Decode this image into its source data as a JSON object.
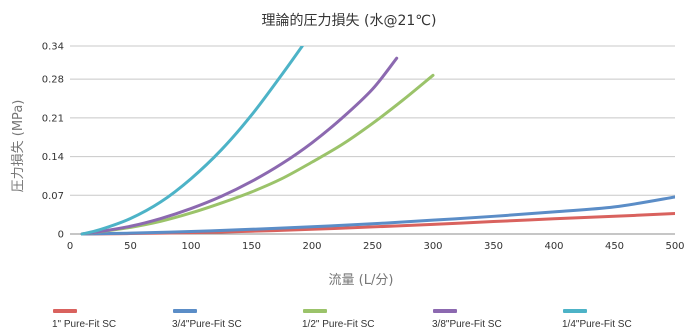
{
  "chart_data": {
    "type": "line",
    "title": "理論的圧力損失 (水@21℃)",
    "xlabel": "流量 (L/分)",
    "ylabel": "圧力損失 (MPa)",
    "xlim": [
      0,
      500
    ],
    "ylim": [
      0,
      0.34
    ],
    "x_ticks": [
      "0",
      "50",
      "100",
      "150",
      "200",
      "250",
      "300",
      "350",
      "400",
      "450",
      "500"
    ],
    "y_ticks": [
      "0",
      "0.07",
      "0.14",
      "0.21",
      "0.28",
      "0.34"
    ],
    "grid": "horizontal",
    "legend_position": "bottom",
    "series": [
      {
        "name": "1\" Pure-Fit SC",
        "color": "#d9625e",
        "x": [
          10,
          50,
          100,
          150,
          200,
          250,
          300,
          350,
          400,
          450,
          500
        ],
        "y": [
          0.0,
          0.0008,
          0.0025,
          0.005,
          0.0085,
          0.0128,
          0.0175,
          0.0225,
          0.0275,
          0.032,
          0.037
        ]
      },
      {
        "name": "3/4\"Pure-Fit SC",
        "color": "#5b8dc7",
        "x": [
          10,
          50,
          100,
          150,
          200,
          250,
          300,
          350,
          400,
          450,
          500
        ],
        "y": [
          0.0,
          0.0015,
          0.0045,
          0.0085,
          0.013,
          0.0185,
          0.025,
          0.032,
          0.04,
          0.049,
          0.067
        ]
      },
      {
        "name": "1/2\" Pure-Fit SC",
        "color": "#9bc36a",
        "x": [
          10,
          25,
          50,
          75,
          100,
          125,
          150,
          175,
          200,
          225,
          250,
          275,
          300
        ],
        "y": [
          0.0,
          0.004,
          0.012,
          0.023,
          0.038,
          0.056,
          0.076,
          0.1,
          0.13,
          0.162,
          0.2,
          0.242,
          0.287
        ]
      },
      {
        "name": "3/8\"Pure-Fit SC",
        "color": "#8c69b0",
        "x": [
          10,
          25,
          50,
          75,
          100,
          125,
          150,
          175,
          200,
          225,
          250,
          270
        ],
        "y": [
          0.0,
          0.0045,
          0.014,
          0.028,
          0.046,
          0.068,
          0.095,
          0.127,
          0.165,
          0.21,
          0.262,
          0.318
        ]
      },
      {
        "name": "1/4\"Pure-Fit SC",
        "color": "#4db3c7",
        "x": [
          10,
          25,
          50,
          75,
          100,
          125,
          150,
          175,
          192
        ],
        "y": [
          0.0,
          0.008,
          0.028,
          0.058,
          0.1,
          0.152,
          0.215,
          0.288,
          0.34
        ]
      }
    ]
  }
}
